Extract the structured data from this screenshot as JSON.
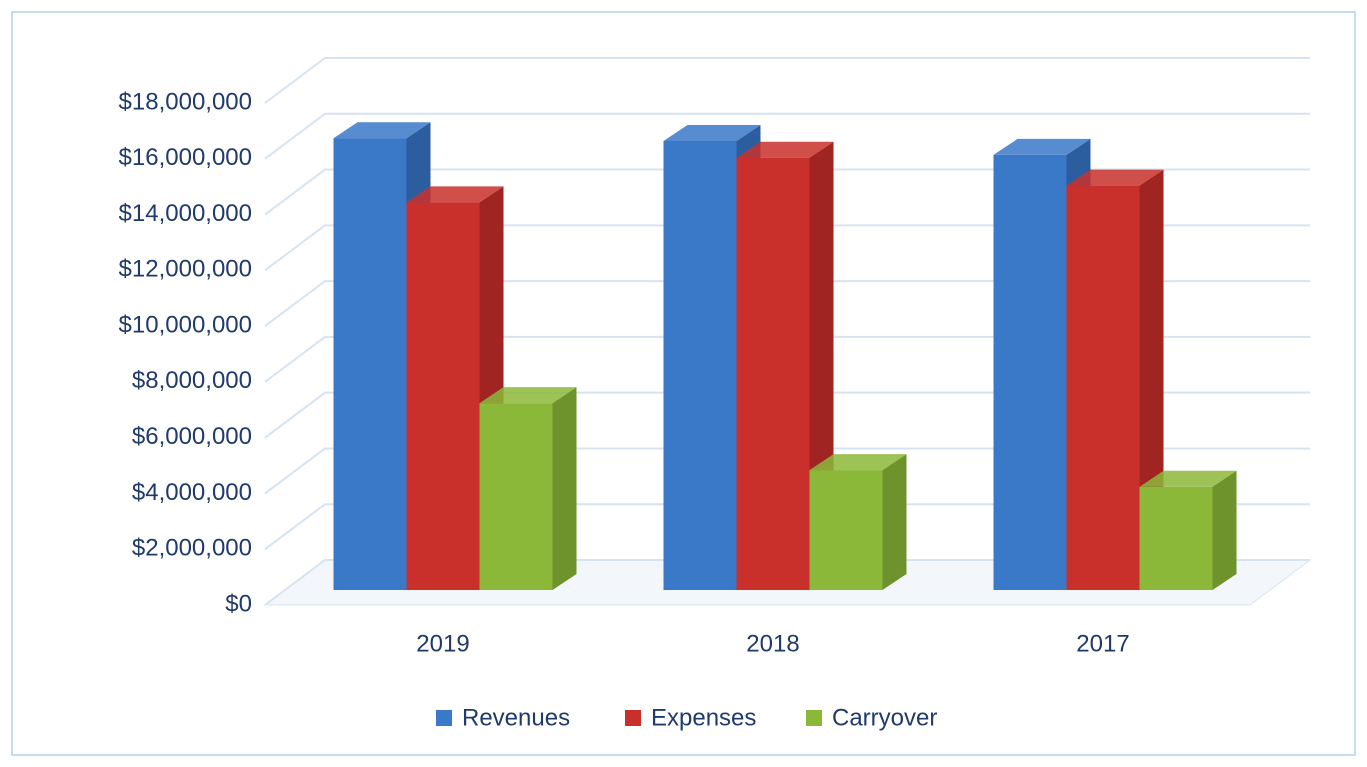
{
  "chart_data": {
    "type": "bar3d",
    "categories": [
      "2019",
      "2018",
      "2017"
    ],
    "series": [
      {
        "name": "Revenues",
        "color": "#3a78c8",
        "values": [
          16200000,
          16100000,
          15600000
        ]
      },
      {
        "name": "Expenses",
        "color": "#c9302c",
        "values": [
          13900000,
          15500000,
          14500000
        ]
      },
      {
        "name": "Carryover",
        "color": "#8cb83a",
        "values": [
          6700000,
          4300000,
          3700000
        ]
      }
    ],
    "ylim": [
      0,
      18000000
    ],
    "yticks": [
      {
        "value": 0,
        "label": "$0"
      },
      {
        "value": 2000000,
        "label": "$2,000,000"
      },
      {
        "value": 4000000,
        "label": "$4,000,000"
      },
      {
        "value": 6000000,
        "label": "$6,000,000"
      },
      {
        "value": 8000000,
        "label": "$8,000,000"
      },
      {
        "value": 10000000,
        "label": "$10,000,000"
      },
      {
        "value": 12000000,
        "label": "$12,000,000"
      },
      {
        "value": 14000000,
        "label": "$14,000,000"
      },
      {
        "value": 16000000,
        "label": "$16,000,000"
      },
      {
        "value": 18000000,
        "label": "$18,000,000"
      }
    ],
    "grid": true,
    "legend": "bottom"
  }
}
